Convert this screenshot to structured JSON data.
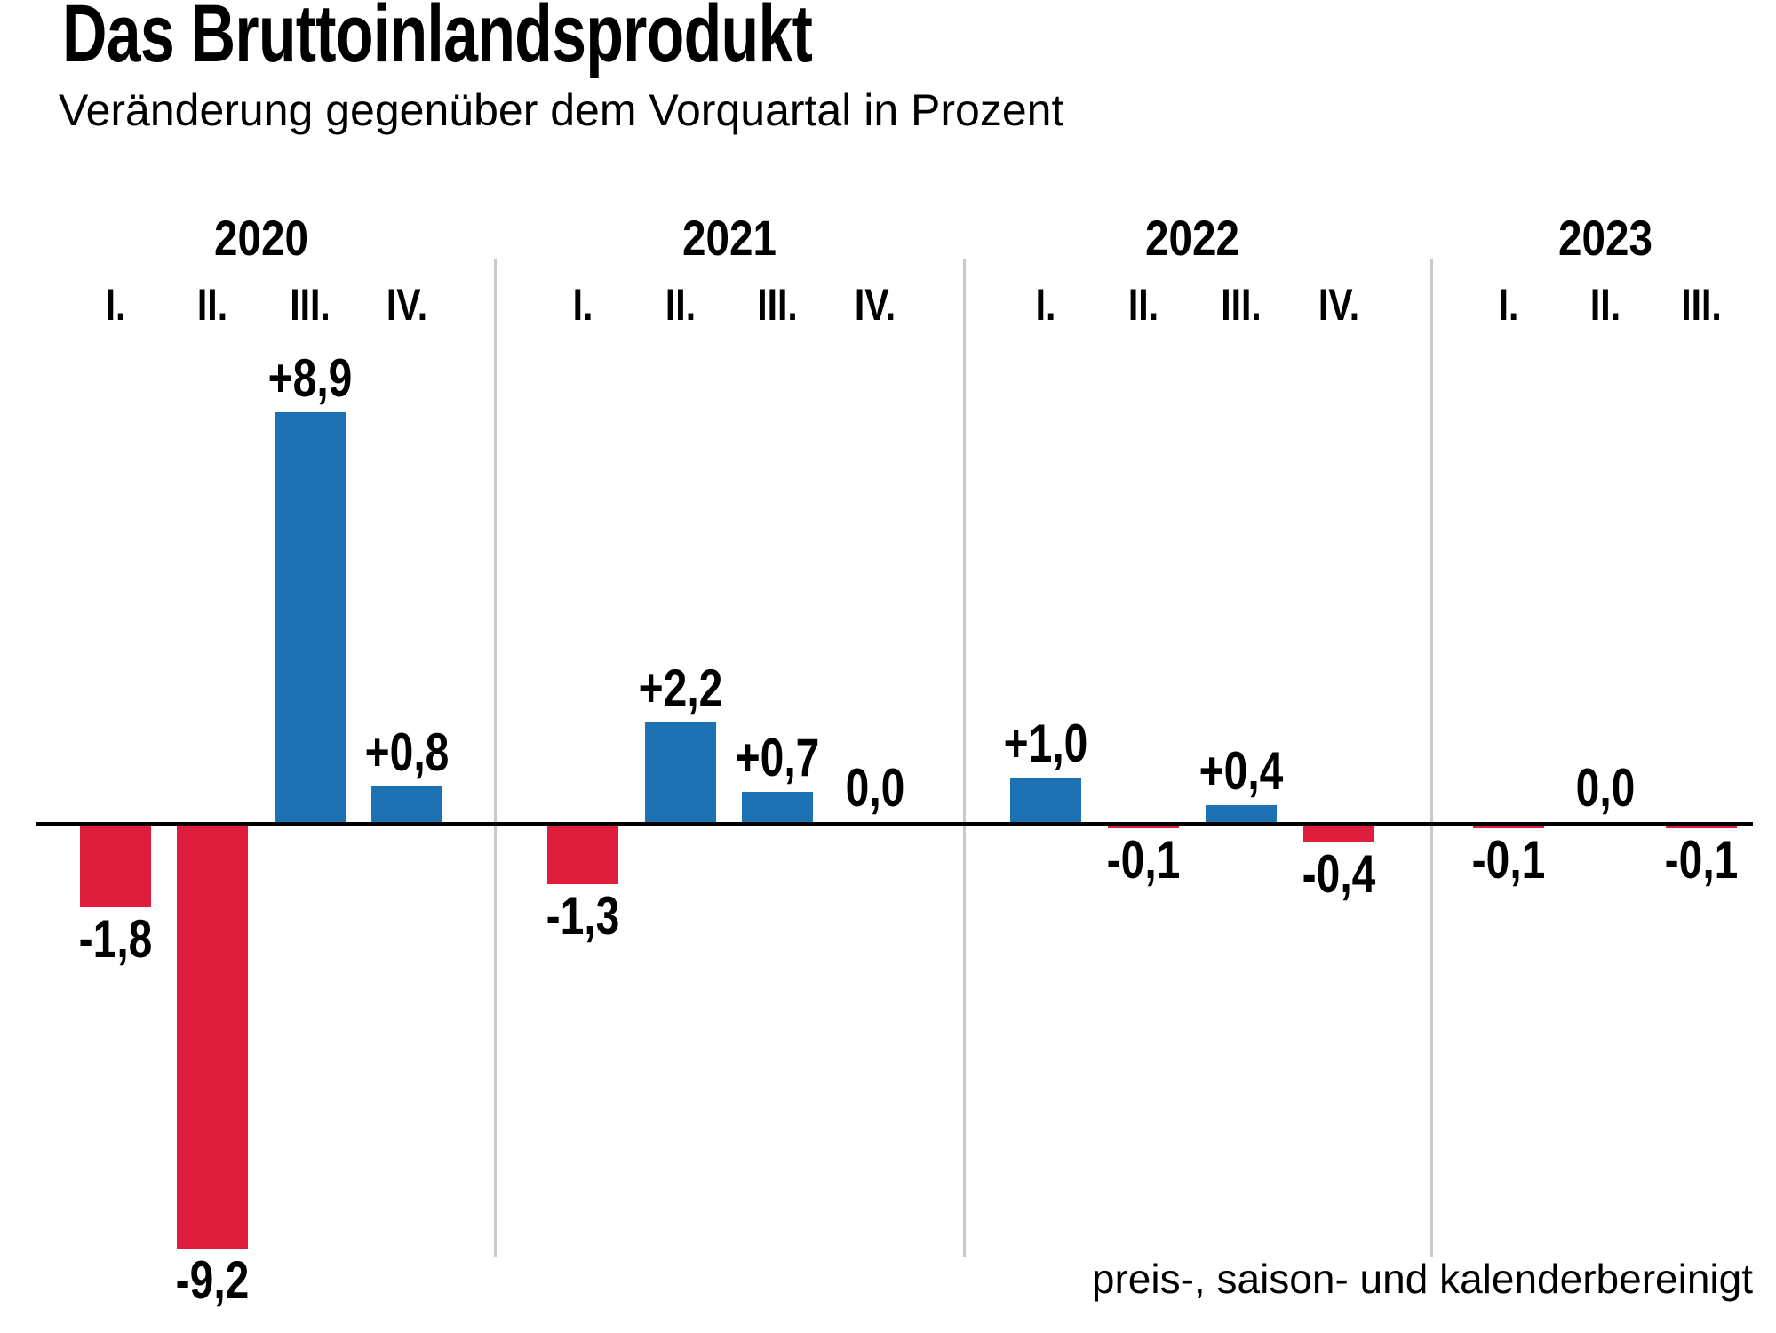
{
  "title": "Das Bruttoinlandsprodukt",
  "subtitle": "Veränderung gegenüber dem Vorquartal in Prozent",
  "footnote": "preis-, saison- und kalenderbereinigt",
  "chart_data": {
    "type": "bar",
    "title": "Das Bruttoinlandsprodukt",
    "subtitle": "Veränderung gegenüber dem Vorquartal in Prozent",
    "unit": "Prozent, Veränderung gegenüber dem Vorquartal",
    "footnote": "preis-, saison- und kalenderbereinigt",
    "colors": {
      "positive": "#1d72b4",
      "negative": "#df1e3e"
    },
    "ylim": [
      -9.5,
      9.5
    ],
    "grid": false,
    "legend": "none",
    "groups": [
      {
        "year": "2020",
        "quarters": [
          {
            "label": "I.",
            "value": -1.8,
            "display": "-1,8"
          },
          {
            "label": "II.",
            "value": -9.2,
            "display": "-9,2"
          },
          {
            "label": "III.",
            "value": 8.9,
            "display": "+8,9"
          },
          {
            "label": "IV.",
            "value": 0.8,
            "display": "+0,8"
          }
        ]
      },
      {
        "year": "2021",
        "quarters": [
          {
            "label": "I.",
            "value": -1.3,
            "display": "-1,3"
          },
          {
            "label": "II.",
            "value": 2.2,
            "display": "+2,2"
          },
          {
            "label": "III.",
            "value": 0.7,
            "display": "+0,7"
          },
          {
            "label": "IV.",
            "value": 0.0,
            "display": "0,0"
          }
        ]
      },
      {
        "year": "2022",
        "quarters": [
          {
            "label": "I.",
            "value": 1.0,
            "display": "+1,0"
          },
          {
            "label": "II.",
            "value": -0.1,
            "display": "-0,1"
          },
          {
            "label": "III.",
            "value": 0.4,
            "display": "+0,4"
          },
          {
            "label": "IV.",
            "value": -0.4,
            "display": "-0,4"
          }
        ]
      },
      {
        "year": "2023",
        "quarters": [
          {
            "label": "I.",
            "value": -0.1,
            "display": "-0,1"
          },
          {
            "label": "II.",
            "value": 0.0,
            "display": "0,0"
          },
          {
            "label": "III.",
            "value": -0.1,
            "display": "-0,1"
          }
        ]
      }
    ]
  }
}
